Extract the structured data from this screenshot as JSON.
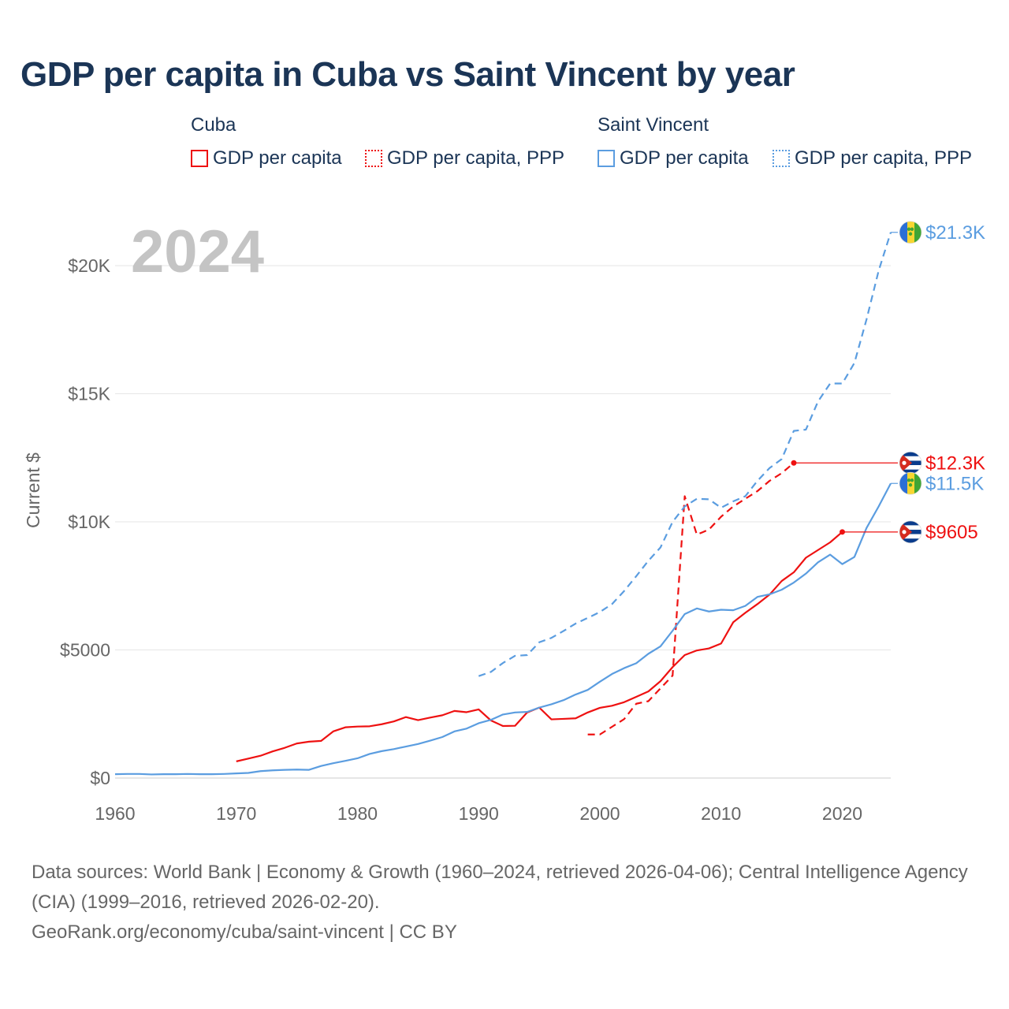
{
  "title": "GDP per capita in Cuba vs Saint Vincent by year",
  "legend": {
    "groups": [
      {
        "name": "Cuba",
        "items": [
          "GDP per capita",
          "GDP per capita, PPP"
        ]
      },
      {
        "name": "Saint Vincent",
        "items": [
          "GDP per capita",
          "GDP per capita, PPP"
        ]
      }
    ]
  },
  "colors": {
    "cuba": "#ee1111",
    "saint_vincent": "#5b9de0",
    "grid": "#e6e6e6",
    "axis_text": "#666666",
    "year": "#c4c4c4"
  },
  "year_label": "2024",
  "source": {
    "line1": "Data sources: World Bank | Economy & Growth (1960–2024, retrieved 2026-04-06); Central Intelligence Agency (CIA) (1999–2016, retrieved 2026-02-20).",
    "line2": "GeoRank.org/economy/cuba/saint-vincent | CC BY"
  },
  "chart_data": {
    "type": "line",
    "title": "GDP per capita in Cuba vs Saint Vincent by year",
    "xlabel": "",
    "ylabel": "Current $",
    "xlim": [
      1960,
      2024
    ],
    "ylim": [
      0,
      22000
    ],
    "x_ticks": [
      1960,
      1970,
      1980,
      1990,
      2000,
      2010,
      2020
    ],
    "x_tick_labels": [
      "1960",
      "1970",
      "1980",
      "1990",
      "2000",
      "2010",
      "2020"
    ],
    "y_ticks": [
      0,
      5000,
      10000,
      15000,
      20000
    ],
    "y_tick_labels": [
      "$0",
      "$5000",
      "$10K",
      "$15K",
      "$20K"
    ],
    "grid": true,
    "series": [
      {
        "name": "Cuba GDP per capita",
        "country": "cuba",
        "style": "solid",
        "end_label": "$9605",
        "x": [
          1970,
          1971,
          1972,
          1973,
          1974,
          1975,
          1976,
          1977,
          1978,
          1979,
          1980,
          1981,
          1982,
          1983,
          1984,
          1985,
          1986,
          1987,
          1988,
          1989,
          1990,
          1991,
          1992,
          1993,
          1994,
          1995,
          1996,
          1997,
          1998,
          1999,
          2000,
          2001,
          2002,
          2003,
          2004,
          2005,
          2006,
          2007,
          2008,
          2009,
          2010,
          2011,
          2012,
          2013,
          2014,
          2015,
          2016,
          2017,
          2018,
          2019,
          2020
        ],
        "values": [
          650,
          760,
          870,
          1040,
          1180,
          1350,
          1420,
          1450,
          1820,
          1980,
          2010,
          2020,
          2100,
          2210,
          2380,
          2260,
          2360,
          2450,
          2620,
          2570,
          2680,
          2250,
          2030,
          2040,
          2560,
          2750,
          2290,
          2310,
          2330,
          2560,
          2740,
          2820,
          2960,
          3170,
          3380,
          3780,
          4330,
          4800,
          4980,
          5060,
          5250,
          6080,
          6450,
          6790,
          7160,
          7690,
          8030,
          8600,
          8900,
          9200,
          9605
        ]
      },
      {
        "name": "Cuba GDP per capita, PPP",
        "country": "cuba",
        "style": "dashed",
        "end_label": "$12.3K",
        "x": [
          1999,
          2000,
          2001,
          2002,
          2003,
          2004,
          2005,
          2006,
          2007,
          2008,
          2009,
          2010,
          2011,
          2012,
          2013,
          2014,
          2015,
          2016
        ],
        "values": [
          1700,
          1700,
          2000,
          2300,
          2900,
          3000,
          3500,
          4000,
          11000,
          9500,
          9700,
          10200,
          10600,
          10900,
          11200,
          11600,
          11900,
          12300
        ]
      },
      {
        "name": "Saint Vincent GDP per capita",
        "country": "saint_vincent",
        "style": "solid",
        "end_label": "$11.5K",
        "x": [
          1960,
          1961,
          1962,
          1963,
          1964,
          1965,
          1966,
          1967,
          1968,
          1969,
          1970,
          1971,
          1972,
          1973,
          1974,
          1975,
          1976,
          1977,
          1978,
          1979,
          1980,
          1981,
          1982,
          1983,
          1984,
          1985,
          1986,
          1987,
          1988,
          1989,
          1990,
          1991,
          1992,
          1993,
          1994,
          1995,
          1996,
          1997,
          1998,
          1999,
          2000,
          2001,
          2002,
          2003,
          2004,
          2005,
          2006,
          2007,
          2008,
          2009,
          2010,
          2011,
          2012,
          2013,
          2014,
          2015,
          2016,
          2017,
          2018,
          2019,
          2020,
          2021,
          2022,
          2023,
          2024
        ],
        "values": [
          150,
          160,
          160,
          140,
          150,
          150,
          160,
          150,
          150,
          160,
          180,
          200,
          270,
          300,
          320,
          330,
          320,
          470,
          580,
          670,
          770,
          940,
          1050,
          1130,
          1230,
          1330,
          1460,
          1600,
          1820,
          1930,
          2140,
          2270,
          2480,
          2560,
          2580,
          2750,
          2880,
          3040,
          3260,
          3440,
          3760,
          4060,
          4290,
          4480,
          4850,
          5140,
          5750,
          6400,
          6620,
          6500,
          6570,
          6550,
          6720,
          7070,
          7170,
          7350,
          7630,
          7980,
          8420,
          8720,
          8350,
          8630,
          9760,
          10600,
          11500
        ]
      },
      {
        "name": "Saint Vincent GDP per capita, PPP",
        "country": "saint_vincent",
        "style": "dashed",
        "end_label": "$21.3K",
        "x": [
          1990,
          1991,
          1992,
          1993,
          1994,
          1995,
          1996,
          1997,
          1998,
          1999,
          2000,
          2001,
          2002,
          2003,
          2004,
          2005,
          2006,
          2007,
          2008,
          2009,
          2010,
          2011,
          2012,
          2013,
          2014,
          2015,
          2016,
          2017,
          2018,
          2019,
          2020,
          2021,
          2022,
          2023,
          2024
        ],
        "values": [
          3980,
          4140,
          4490,
          4770,
          4800,
          5300,
          5470,
          5740,
          6030,
          6250,
          6480,
          6790,
          7300,
          7880,
          8480,
          9000,
          10000,
          10600,
          10900,
          10880,
          10550,
          10800,
          11000,
          11600,
          12100,
          12450,
          13550,
          13600,
          14700,
          15400,
          15400,
          16200,
          17900,
          19800,
          21300
        ]
      }
    ]
  }
}
